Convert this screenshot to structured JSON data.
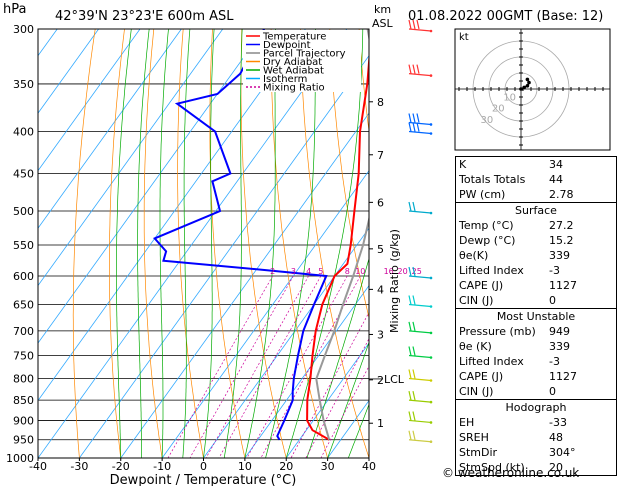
{
  "header": {
    "pressure_unit": "hPa",
    "station": "42°39'N 23°23'E 600m ASL",
    "km_label": "km",
    "asl_label": "ASL",
    "datetime": "01.08.2022 00GMT (Base: 12)"
  },
  "axes": {
    "xlabel": "Dewpoint / Temperature (°C)",
    "mixing_label": "Mixing Ratio (g/kg)",
    "x_ticks": [
      "-40",
      "-30",
      "-20",
      "-10",
      "0",
      "10",
      "20",
      "30",
      "40"
    ],
    "p_ticks": [
      "300",
      "350",
      "400",
      "450",
      "500",
      "550",
      "600",
      "650",
      "700",
      "750",
      "800",
      "850",
      "900",
      "950",
      "1000"
    ],
    "km_ticks": [
      {
        "label": "8",
        "p": 368
      },
      {
        "label": "7",
        "p": 427
      },
      {
        "label": "6",
        "p": 488
      },
      {
        "label": "5",
        "p": 556
      },
      {
        "label": "4",
        "p": 623
      },
      {
        "label": "3",
        "p": 707
      },
      {
        "label": "2",
        "p": 803
      },
      {
        "label": "1",
        "p": 907
      }
    ],
    "lcl_label": "LCL",
    "lcl_p": 801,
    "mixing_ratio_labels": [
      "2",
      "3",
      "4",
      "5",
      "8",
      "10",
      "16",
      "20",
      "25"
    ]
  },
  "legend": [
    {
      "label": "Temperature",
      "color": "#ff0000"
    },
    {
      "label": "Dewpoint",
      "color": "#0000ff"
    },
    {
      "label": "Parcel Trajectory",
      "color": "#888888"
    },
    {
      "label": "Dry Adiabat",
      "color": "#ff8800"
    },
    {
      "label": "Wet Adiabat",
      "color": "#00aa00"
    },
    {
      "label": "Isotherm",
      "color": "#00aaff"
    },
    {
      "label": "Mixing Ratio",
      "color": "#cc0099"
    }
  ],
  "hodograph": {
    "unit_label": "kt",
    "ring_labels": [
      "10",
      "20",
      "30"
    ]
  },
  "indices": {
    "main": [
      {
        "k": "K",
        "v": "34"
      },
      {
        "k": "Totals Totals",
        "v": "44"
      },
      {
        "k": "PW (cm)",
        "v": "2.78"
      }
    ],
    "surface": {
      "title": "Surface",
      "rows": [
        {
          "k": "Temp (°C)",
          "v": "27.2"
        },
        {
          "k": "Dewp (°C)",
          "v": "15.2"
        },
        {
          "k": "θe(K)",
          "v": "339"
        },
        {
          "k": "Lifted Index",
          "v": "-3"
        },
        {
          "k": "CAPE (J)",
          "v": "1127"
        },
        {
          "k": "CIN (J)",
          "v": "0"
        }
      ]
    },
    "most_unstable": {
      "title": "Most Unstable",
      "rows": [
        {
          "k": "Pressure (mb)",
          "v": "949"
        },
        {
          "k": "θe (K)",
          "v": "339"
        },
        {
          "k": "Lifted Index",
          "v": "-3"
        },
        {
          "k": "CAPE (J)",
          "v": "1127"
        },
        {
          "k": "CIN (J)",
          "v": "0"
        }
      ]
    },
    "hodograph": {
      "title": "Hodograph",
      "rows": [
        {
          "k": "EH",
          "v": "-33"
        },
        {
          "k": "SREH",
          "v": "48"
        },
        {
          "k": "StmDir",
          "v": "304°"
        },
        {
          "k": "StmSpd (kt)",
          "v": "20"
        }
      ]
    }
  },
  "footer": "© weatheronline.co.uk",
  "chart_data": {
    "type": "line",
    "title": "42°39'N 23°23'E 600m ASL",
    "xlabel": "Dewpoint / Temperature (°C)",
    "ylabel": "hPa",
    "xlim": [
      -40,
      40
    ],
    "plim": [
      300,
      1000
    ],
    "skew": true,
    "series": [
      {
        "name": "Temperature",
        "color": "#ff0000",
        "points": [
          [
            300,
            -34
          ],
          [
            350,
            -25.5
          ],
          [
            400,
            -19
          ],
          [
            450,
            -12
          ],
          [
            500,
            -6.5
          ],
          [
            550,
            -1.5
          ],
          [
            580,
            1
          ],
          [
            600,
            0
          ],
          [
            650,
            2
          ],
          [
            700,
            5
          ],
          [
            750,
            8.5
          ],
          [
            800,
            12
          ],
          [
            850,
            15
          ],
          [
            900,
            18.5
          ],
          [
            925,
            21.5
          ],
          [
            950,
            27.2
          ]
        ]
      },
      {
        "name": "Dewpoint",
        "color": "#0000ff",
        "points": [
          [
            300,
            -60
          ],
          [
            340,
            -58
          ],
          [
            360,
            -60
          ],
          [
            370,
            -68
          ],
          [
            400,
            -54
          ],
          [
            450,
            -43
          ],
          [
            460,
            -46
          ],
          [
            500,
            -39
          ],
          [
            540,
            -50
          ],
          [
            560,
            -45
          ],
          [
            575,
            -44
          ],
          [
            590,
            -18
          ],
          [
            600,
            -2
          ],
          [
            650,
            0
          ],
          [
            700,
            2
          ],
          [
            750,
            5
          ],
          [
            800,
            8
          ],
          [
            830,
            10
          ],
          [
            850,
            11.5
          ],
          [
            900,
            13
          ],
          [
            940,
            14
          ],
          [
            950,
            15.2
          ]
        ]
      },
      {
        "name": "Parcel Trajectory",
        "color": "#999999",
        "points": [
          [
            300,
            -35
          ],
          [
            350,
            -23
          ],
          [
            400,
            -14
          ],
          [
            450,
            -7.5
          ],
          [
            500,
            -2.5
          ],
          [
            550,
            1.5
          ],
          [
            600,
            4.5
          ],
          [
            650,
            7
          ],
          [
            700,
            9.5
          ],
          [
            750,
            11.5
          ],
          [
            801,
            13.5
          ],
          [
            850,
            18
          ],
          [
            900,
            22.5
          ],
          [
            950,
            27.2
          ]
        ]
      }
    ],
    "winds": [
      {
        "p": 300,
        "color": "#ff3333",
        "barbs": 3
      },
      {
        "p": 340,
        "color": "#ff3333",
        "barbs": 3
      },
      {
        "p": 390,
        "color": "#0066ff",
        "barbs": 3
      },
      {
        "p": 400,
        "color": "#0066ff",
        "barbs": 3
      },
      {
        "p": 500,
        "color": "#00aacc",
        "barbs": 2
      },
      {
        "p": 600,
        "color": "#00aacc",
        "barbs": 2
      },
      {
        "p": 650,
        "color": "#00cccc",
        "barbs": 2
      },
      {
        "p": 700,
        "color": "#00cc44",
        "barbs": 2
      },
      {
        "p": 750,
        "color": "#00cc44",
        "barbs": 2
      },
      {
        "p": 800,
        "color": "#cccc00",
        "barbs": 2
      },
      {
        "p": 850,
        "color": "#99cc00",
        "barbs": 2
      },
      {
        "p": 900,
        "color": "#99cc00",
        "barbs": 2
      },
      {
        "p": 950,
        "color": "#cccc44",
        "barbs": 2
      }
    ],
    "hodograph_points": [
      [
        0,
        0
      ],
      [
        2,
        1
      ],
      [
        4,
        2
      ],
      [
        5,
        4
      ],
      [
        4,
        6
      ]
    ]
  }
}
